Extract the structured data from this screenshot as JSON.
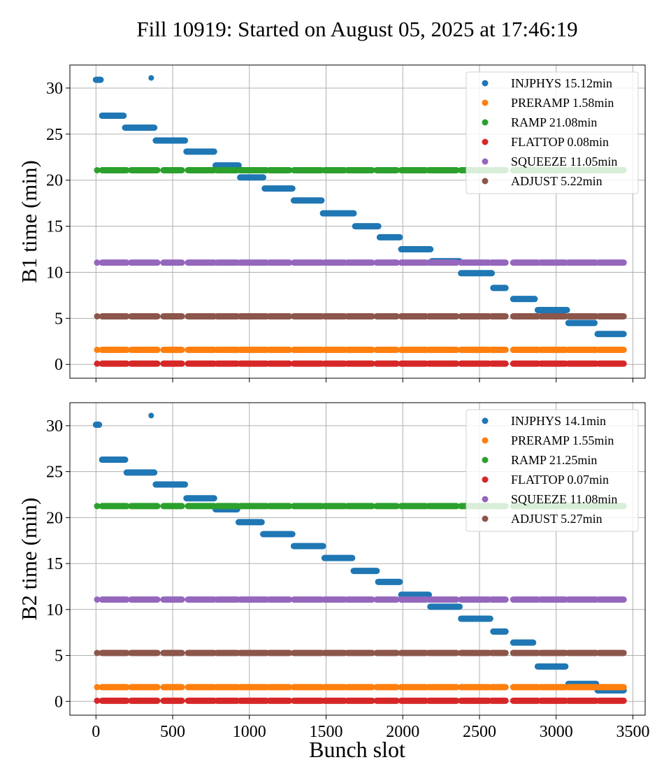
{
  "figure": {
    "title": "Fill 10919: Started on August 05, 2025 at 17:46:19",
    "xlabel": "Bunch slot"
  },
  "colors": {
    "INJPHYS": "#1f77b4",
    "PRERAMP": "#ff7f0e",
    "RAMP": "#2ca02c",
    "FLATTOP": "#d62728",
    "SQUEEZE": "#9467bd",
    "ADJUST": "#8c564b"
  },
  "chart_data": [
    {
      "type": "scatter",
      "ylabel": "B1 time (min)",
      "xlim": [
        -170,
        3580
      ],
      "ylim": [
        -1.5,
        32.5
      ],
      "xticks": [
        0,
        500,
        1000,
        1500,
        2000,
        2500,
        3000,
        3500
      ],
      "yticks": [
        0,
        5,
        10,
        15,
        20,
        25,
        30
      ],
      "grid": true,
      "legend_position": "top-right",
      "legend": [
        "INJPHYS 15.12min",
        "PRERAMP 1.58min",
        "RAMP 21.08min",
        "FLATTOP 0.08min",
        "SQUEEZE 11.05min",
        "ADJUST 5.22min"
      ],
      "filled_segments": [
        [
          0,
          15
        ],
        [
          40,
          200
        ],
        [
          230,
          400
        ],
        [
          440,
          560
        ],
        [
          600,
          770
        ],
        [
          790,
          920
        ],
        [
          940,
          1110
        ],
        [
          1130,
          1260
        ],
        [
          1290,
          1470
        ],
        [
          1490,
          1620
        ],
        [
          1640,
          1800
        ],
        [
          1830,
          1960
        ],
        [
          1990,
          2150
        ],
        [
          2170,
          2350
        ],
        [
          2380,
          2560
        ],
        [
          2580,
          2670
        ],
        [
          2720,
          2880
        ],
        [
          2900,
          3060
        ],
        [
          3080,
          3260
        ],
        [
          3280,
          3440
        ]
      ],
      "series": [
        {
          "name": "INJPHYS 15.12min",
          "key": "INJPHYS",
          "segments": [
            {
              "x": [
                0,
                30
              ],
              "y": 30.9
            },
            {
              "x": [
                355,
                365
              ],
              "y": 31.1
            },
            {
              "x": [
                40,
                180
              ],
              "y": 27.0
            },
            {
              "x": [
                190,
                380
              ],
              "y": 25.7
            },
            {
              "x": [
                390,
                580
              ],
              "y": 24.3
            },
            {
              "x": [
                590,
                770
              ],
              "y": 23.1
            },
            {
              "x": [
                780,
                930
              ],
              "y": 21.6
            },
            {
              "x": [
                940,
                1090
              ],
              "y": 20.3
            },
            {
              "x": [
                1100,
                1280
              ],
              "y": 19.1
            },
            {
              "x": [
                1290,
                1470
              ],
              "y": 17.8
            },
            {
              "x": [
                1480,
                1680
              ],
              "y": 16.4
            },
            {
              "x": [
                1690,
                1840
              ],
              "y": 15.0
            },
            {
              "x": [
                1850,
                1980
              ],
              "y": 13.8
            },
            {
              "x": [
                1990,
                2180
              ],
              "y": 12.5
            },
            {
              "x": [
                2190,
                2370
              ],
              "y": 11.2
            },
            {
              "x": [
                2380,
                2580
              ],
              "y": 9.9
            },
            {
              "x": [
                2590,
                2670
              ],
              "y": 8.3
            },
            {
              "x": [
                2720,
                2860
              ],
              "y": 7.1
            },
            {
              "x": [
                2880,
                3070
              ],
              "y": 5.9
            },
            {
              "x": [
                3080,
                3250
              ],
              "y": 4.5
            },
            {
              "x": [
                3270,
                3440
              ],
              "y": 3.3
            }
          ]
        },
        {
          "name": "PRERAMP 1.58min",
          "key": "PRERAMP",
          "level": 1.58
        },
        {
          "name": "RAMP 21.08min",
          "key": "RAMP",
          "level": 21.08
        },
        {
          "name": "FLATTOP 0.08min",
          "key": "FLATTOP",
          "level": 0.08
        },
        {
          "name": "SQUEEZE 11.05min",
          "key": "SQUEEZE",
          "level": 11.05
        },
        {
          "name": "ADJUST 5.22min",
          "key": "ADJUST",
          "level": 5.22
        }
      ]
    },
    {
      "type": "scatter",
      "ylabel": "B2 time (min)",
      "xlabel": "Bunch slot",
      "xlim": [
        -170,
        3580
      ],
      "ylim": [
        -1.5,
        32.5
      ],
      "xticks": [
        0,
        500,
        1000,
        1500,
        2000,
        2500,
        3000,
        3500
      ],
      "yticks": [
        0,
        5,
        10,
        15,
        20,
        25,
        30
      ],
      "grid": true,
      "legend_position": "top-right",
      "legend": [
        "INJPHYS 14.1min",
        "PRERAMP 1.55min",
        "RAMP 21.25min",
        "FLATTOP 0.07min",
        "SQUEEZE 11.08min",
        "ADJUST 5.27min"
      ],
      "filled_segments": [
        [
          0,
          15
        ],
        [
          40,
          200
        ],
        [
          230,
          400
        ],
        [
          440,
          560
        ],
        [
          600,
          770
        ],
        [
          790,
          920
        ],
        [
          940,
          1110
        ],
        [
          1130,
          1260
        ],
        [
          1290,
          1470
        ],
        [
          1490,
          1620
        ],
        [
          1640,
          1800
        ],
        [
          1830,
          1960
        ],
        [
          1990,
          2150
        ],
        [
          2170,
          2350
        ],
        [
          2380,
          2560
        ],
        [
          2580,
          2670
        ],
        [
          2720,
          2880
        ],
        [
          2900,
          3060
        ],
        [
          3080,
          3260
        ],
        [
          3280,
          3440
        ]
      ],
      "series": [
        {
          "name": "INJPHYS 14.1min",
          "key": "INJPHYS",
          "segments": [
            {
              "x": [
                0,
                20
              ],
              "y": 30.1
            },
            {
              "x": [
                355,
                365
              ],
              "y": 31.1
            },
            {
              "x": [
                40,
                190
              ],
              "y": 26.3
            },
            {
              "x": [
                200,
                380
              ],
              "y": 24.9
            },
            {
              "x": [
                390,
                580
              ],
              "y": 23.6
            },
            {
              "x": [
                590,
                770
              ],
              "y": 22.1
            },
            {
              "x": [
                780,
                920
              ],
              "y": 20.9
            },
            {
              "x": [
                930,
                1080
              ],
              "y": 19.5
            },
            {
              "x": [
                1090,
                1280
              ],
              "y": 18.2
            },
            {
              "x": [
                1290,
                1480
              ],
              "y": 16.9
            },
            {
              "x": [
                1490,
                1670
              ],
              "y": 15.6
            },
            {
              "x": [
                1680,
                1830
              ],
              "y": 14.2
            },
            {
              "x": [
                1840,
                1980
              ],
              "y": 13.0
            },
            {
              "x": [
                1990,
                2170
              ],
              "y": 11.6
            },
            {
              "x": [
                2180,
                2370
              ],
              "y": 10.3
            },
            {
              "x": [
                2380,
                2570
              ],
              "y": 9.0
            },
            {
              "x": [
                2590,
                2670
              ],
              "y": 7.6
            },
            {
              "x": [
                2720,
                2850
              ],
              "y": 6.4
            },
            {
              "x": [
                2880,
                3060
              ],
              "y": 3.8
            },
            {
              "x": [
                3080,
                3260
              ],
              "y": 1.9
            },
            {
              "x": [
                3270,
                3440
              ],
              "y": 1.2
            }
          ]
        },
        {
          "name": "PRERAMP 1.55min",
          "key": "PRERAMP",
          "level": 1.55
        },
        {
          "name": "RAMP 21.25min",
          "key": "RAMP",
          "level": 21.25
        },
        {
          "name": "FLATTOP 0.07min",
          "key": "FLATTOP",
          "level": 0.07
        },
        {
          "name": "SQUEEZE 11.08min",
          "key": "SQUEEZE",
          "level": 11.08
        },
        {
          "name": "ADJUST 5.27min",
          "key": "ADJUST",
          "level": 5.27
        }
      ]
    }
  ]
}
